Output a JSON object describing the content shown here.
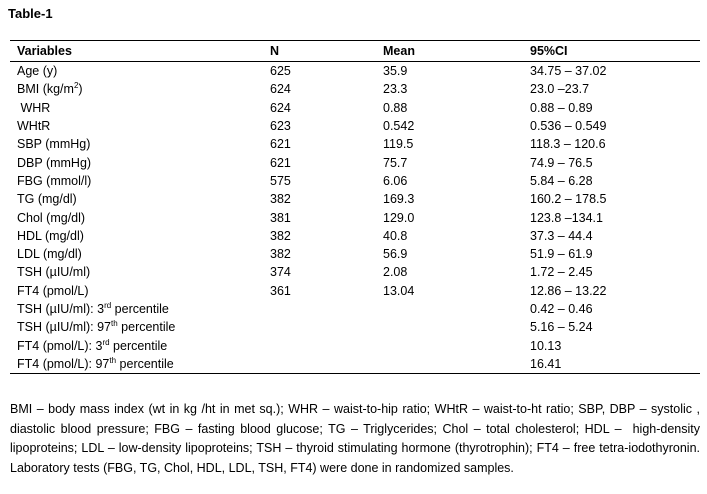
{
  "title": "Table-1",
  "table": {
    "header": [
      "Variables",
      "N",
      "Mean",
      "95%CI"
    ],
    "rows": [
      {
        "variable": "Age (y)",
        "n": "625",
        "mean": "35.9",
        "ci": "34.75 – 37.02"
      },
      {
        "variable": {
          "text": "BMI (kg/m",
          "sup": "2",
          "rest": ")"
        },
        "n": "624",
        "mean": "23.3",
        "ci": "23.0 –23.7"
      },
      {
        "variable": " WHR",
        "n": "624",
        "mean": "0.88",
        "ci": "0.88 – 0.89"
      },
      {
        "variable": "WHtR",
        "n": "623",
        "mean": "0.542",
        "ci": "0.536 – 0.549"
      },
      {
        "variable": "SBP (mmHg)",
        "n": "621",
        "mean": "119.5",
        "ci": "118.3 – 120.6"
      },
      {
        "variable": "DBP (mmHg)",
        "n": "621",
        "mean": "75.7",
        "ci": "74.9 – 76.5"
      },
      {
        "variable": "FBG (mmol/l)",
        "n": "575",
        "mean": "6.06",
        "ci": "5.84 – 6.28"
      },
      {
        "variable": "TG (mg/dl)",
        "n": "382",
        "mean": "169.3",
        "ci": "160.2 – 178.5"
      },
      {
        "variable": "Chol (mg/dl)",
        "n": "381",
        "mean": "129.0",
        "ci": "123.8 –134.1"
      },
      {
        "variable": "HDL (mg/dl)",
        "n": "382",
        "mean": "40.8",
        "ci": "37.3 – 44.4"
      },
      {
        "variable": "LDL (mg/dl)",
        "n": "382",
        "mean": "56.9",
        "ci": "51.9 – 61.9"
      },
      {
        "variable": "TSH (µIU/ml)",
        "n": "374",
        "mean": "2.08",
        "ci": "1.72 – 2.45"
      },
      {
        "variable": "FT4 (pmol/L)",
        "n": "361",
        "mean": "13.04",
        "ci": "12.86 – 13.22"
      },
      {
        "variable": {
          "text": "TSH (µIU/ml): 3",
          "sup": "rd",
          "rest": " percentile"
        },
        "ci": "0.42 – 0.46"
      },
      {
        "variable": {
          "text": "TSH (µIU/ml): 97",
          "sup": "th",
          "rest": " percentile"
        },
        "ci": "5.16 – 5.24"
      },
      {
        "variable": {
          "text": "FT4 (pmol/L): 3",
          "sup": "rd",
          "rest": " percentile"
        },
        "ci": "10.13"
      },
      {
        "variable": {
          "text": "FT4 (pmol/L): 97",
          "sup": "th",
          "rest": " percentile"
        },
        "ci": "16.41"
      }
    ]
  },
  "footnote": "BMI – body mass index (wt in kg /ht in met sq.); WHR – waist-to-hip ratio; WHtR – waist-to-ht ratio; SBP, DBP – systolic , diastolic blood pressure; FBG – fasting blood glucose; TG – Triglycerides; Chol – total cholesterol; HDL –  high-density lipoproteins; LDL – low-density lipoproteins; TSH – thyroid stimulating hormone (thyrotrophin); FT4 – free tetra-iodothyronin. Laboratory tests (FBG, TG, Chol, HDL, LDL, TSH, FT4) were done in randomized samples."
}
